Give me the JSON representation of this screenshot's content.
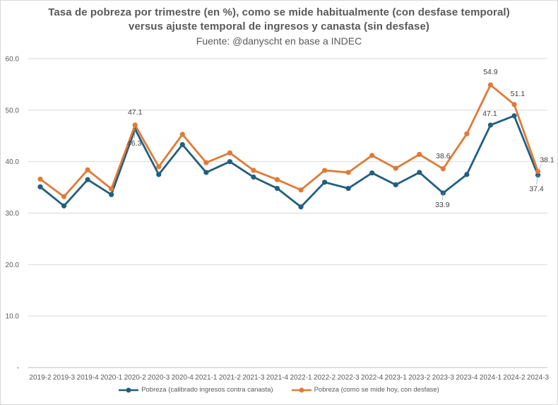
{
  "chart_data": {
    "type": "line",
    "title": "Tasa de pobreza por trimestre (en %), como se mide habitualmente (con desfase temporal)",
    "title_line2": "versus ajuste temporal de ingresos y canasta (sin desfase)",
    "subtitle": "Fuente: @danyscht en base a INDEC",
    "xlabel": "",
    "ylabel": "",
    "ylim": [
      0,
      60
    ],
    "y_ticks": [
      "-",
      "10.0",
      "20.0",
      "30.0",
      "40.0",
      "50.0",
      "60.0"
    ],
    "grid": true,
    "legend_position": "bottom",
    "categories": [
      "2019-2",
      "2019-3",
      "2019-4",
      "2020-1",
      "2020-2",
      "2020-3",
      "2020-4",
      "2021-1",
      "2021-2",
      "2021-3",
      "2021-4",
      "2022-1",
      "2022-2",
      "2022-3",
      "2022-4",
      "2023-1",
      "2023-2",
      "2023-3",
      "2023-4",
      "2024-1",
      "2024-2",
      "2024-3"
    ],
    "series": [
      {
        "name": "Pobreza (calibrado ingresos contra canasta)",
        "color": "#1f5f80",
        "values": [
          35.1,
          31.4,
          36.5,
          33.6,
          46.3,
          37.5,
          43.3,
          37.9,
          40.0,
          37.0,
          34.8,
          31.2,
          36.0,
          34.8,
          37.8,
          35.5,
          37.9,
          33.9,
          37.5,
          47.1,
          48.9,
          37.4
        ]
      },
      {
        "name": "Pobreza (como se mide hoy, con desfase)",
        "color": "#e07a36",
        "values": [
          36.6,
          33.2,
          38.4,
          34.7,
          47.1,
          39.0,
          45.3,
          39.8,
          41.7,
          38.3,
          36.5,
          34.5,
          38.3,
          37.9,
          41.2,
          38.7,
          41.4,
          38.6,
          45.4,
          54.9,
          51.1,
          38.1
        ]
      }
    ],
    "data_labels": [
      {
        "series": 1,
        "index": 4,
        "text": "47.1"
      },
      {
        "series": 0,
        "index": 4,
        "text": "46.3"
      },
      {
        "series": 1,
        "index": 17,
        "text": "38.6"
      },
      {
        "series": 0,
        "index": 17,
        "text": "33.9"
      },
      {
        "series": 1,
        "index": 19,
        "text": "54.9"
      },
      {
        "series": 0,
        "index": 19,
        "text": "47.1"
      },
      {
        "series": 1,
        "index": 20,
        "text": "51.1"
      },
      {
        "series": 1,
        "index": 21,
        "text": "38.1"
      },
      {
        "series": 0,
        "index": 21,
        "text": "37.4"
      }
    ]
  }
}
